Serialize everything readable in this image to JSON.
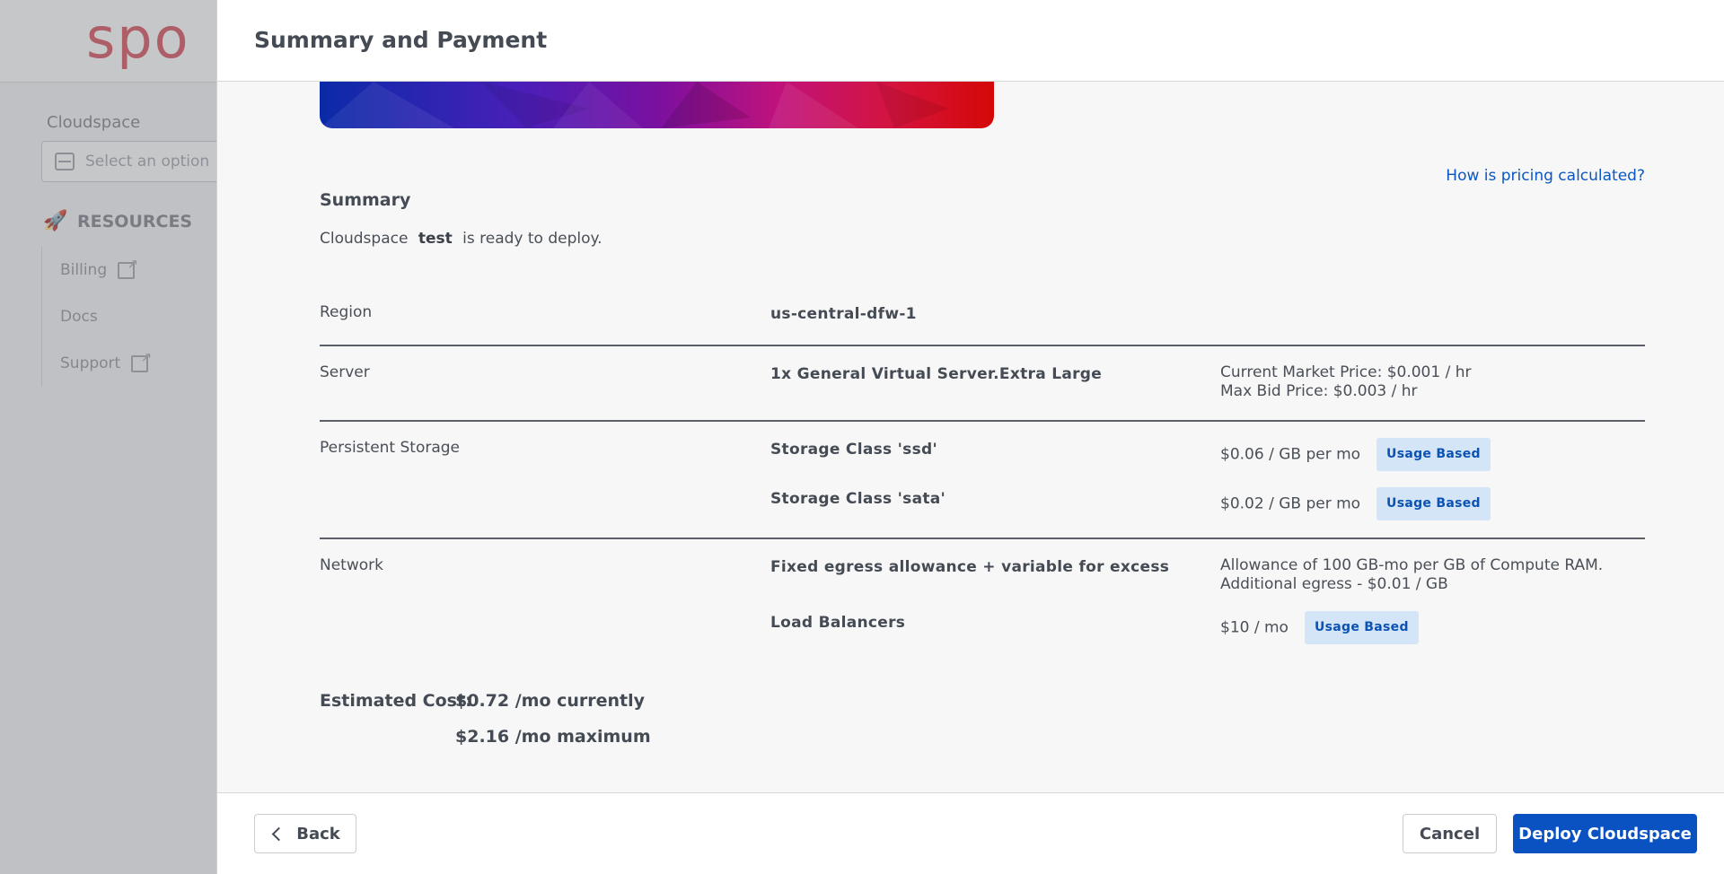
{
  "background": {
    "logo_text": "spo",
    "cloudspace_label": "Cloudspace",
    "select_placeholder": "Select an option",
    "resources_label": "RESOURCES",
    "links": [
      {
        "label": "Billing"
      },
      {
        "label": "Docs"
      },
      {
        "label": "Support"
      }
    ]
  },
  "modal": {
    "title": "Summary and Payment",
    "pricing_link": "How is pricing calculated?",
    "summary_title": "Summary",
    "ready_prefix": "Cloudspace",
    "ready_name": "test",
    "ready_suffix": "is ready to deploy.",
    "rows": {
      "region": {
        "label": "Region",
        "value": "us-central-dfw-1"
      },
      "server": {
        "label": "Server",
        "value": "1x General Virtual Server.Extra Large",
        "price_line1": "Current Market Price: $0.001 / hr",
        "price_line2": "Max Bid Price: $0.003 / hr"
      },
      "storage": {
        "label": "Persistent Storage",
        "items": [
          {
            "name": "Storage Class 'ssd'",
            "price": "$0.06 / GB per mo",
            "badge": "Usage Based"
          },
          {
            "name": "Storage Class 'sata'",
            "price": "$0.02 / GB per mo",
            "badge": "Usage Based"
          }
        ]
      },
      "network": {
        "label": "Network",
        "egress_name": "Fixed egress allowance + variable for excess",
        "egress_line1": "Allowance of 100 GB-mo per GB of Compute RAM.",
        "egress_line2": "Additional egress - $0.01 / GB",
        "lb_name": "Load Balancers",
        "lb_price": "$10 / mo",
        "lb_badge": "Usage Based"
      }
    },
    "estimate": {
      "label": "Estimated Cost:",
      "current": "$0.72 /mo currently",
      "maximum": "$2.16 /mo maximum"
    },
    "footer": {
      "back": "Back",
      "cancel": "Cancel",
      "deploy": "Deploy Cloudspace"
    }
  },
  "colors": {
    "accent": "#0a52c1",
    "link": "#0a57c2",
    "badge_bg": "#d3e5f7",
    "logo": "#d44a57"
  }
}
